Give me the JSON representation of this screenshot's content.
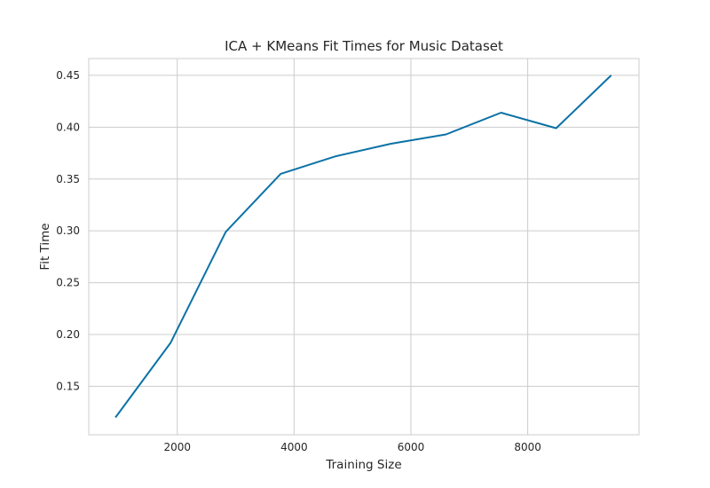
{
  "chart_data": {
    "type": "line",
    "title": "ICA + KMeans Fit Times for Music Dataset",
    "xlabel": "Training Size",
    "ylabel": "Fit Time",
    "xlim": [
      485,
      9905
    ],
    "ylim": [
      0.1033,
      0.4662
    ],
    "xticks": [
      2000,
      4000,
      6000,
      8000
    ],
    "yticks": [
      0.15,
      0.2,
      0.25,
      0.3,
      0.35,
      0.4,
      0.45
    ],
    "xtick_labels": [
      "2000",
      "4000",
      "6000",
      "8000"
    ],
    "ytick_labels": [
      "0.15",
      "0.20",
      "0.25",
      "0.30",
      "0.35",
      "0.40",
      "0.45"
    ],
    "grid": true,
    "line_color": "#0c72a6",
    "series": [
      {
        "x": [
          943,
          1886,
          2829,
          3772,
          4715,
          5658,
          6601,
          7544,
          8487,
          9430
        ],
        "y": [
          0.12,
          0.192,
          0.299,
          0.355,
          0.372,
          0.384,
          0.393,
          0.414,
          0.399,
          0.45
        ]
      }
    ]
  }
}
